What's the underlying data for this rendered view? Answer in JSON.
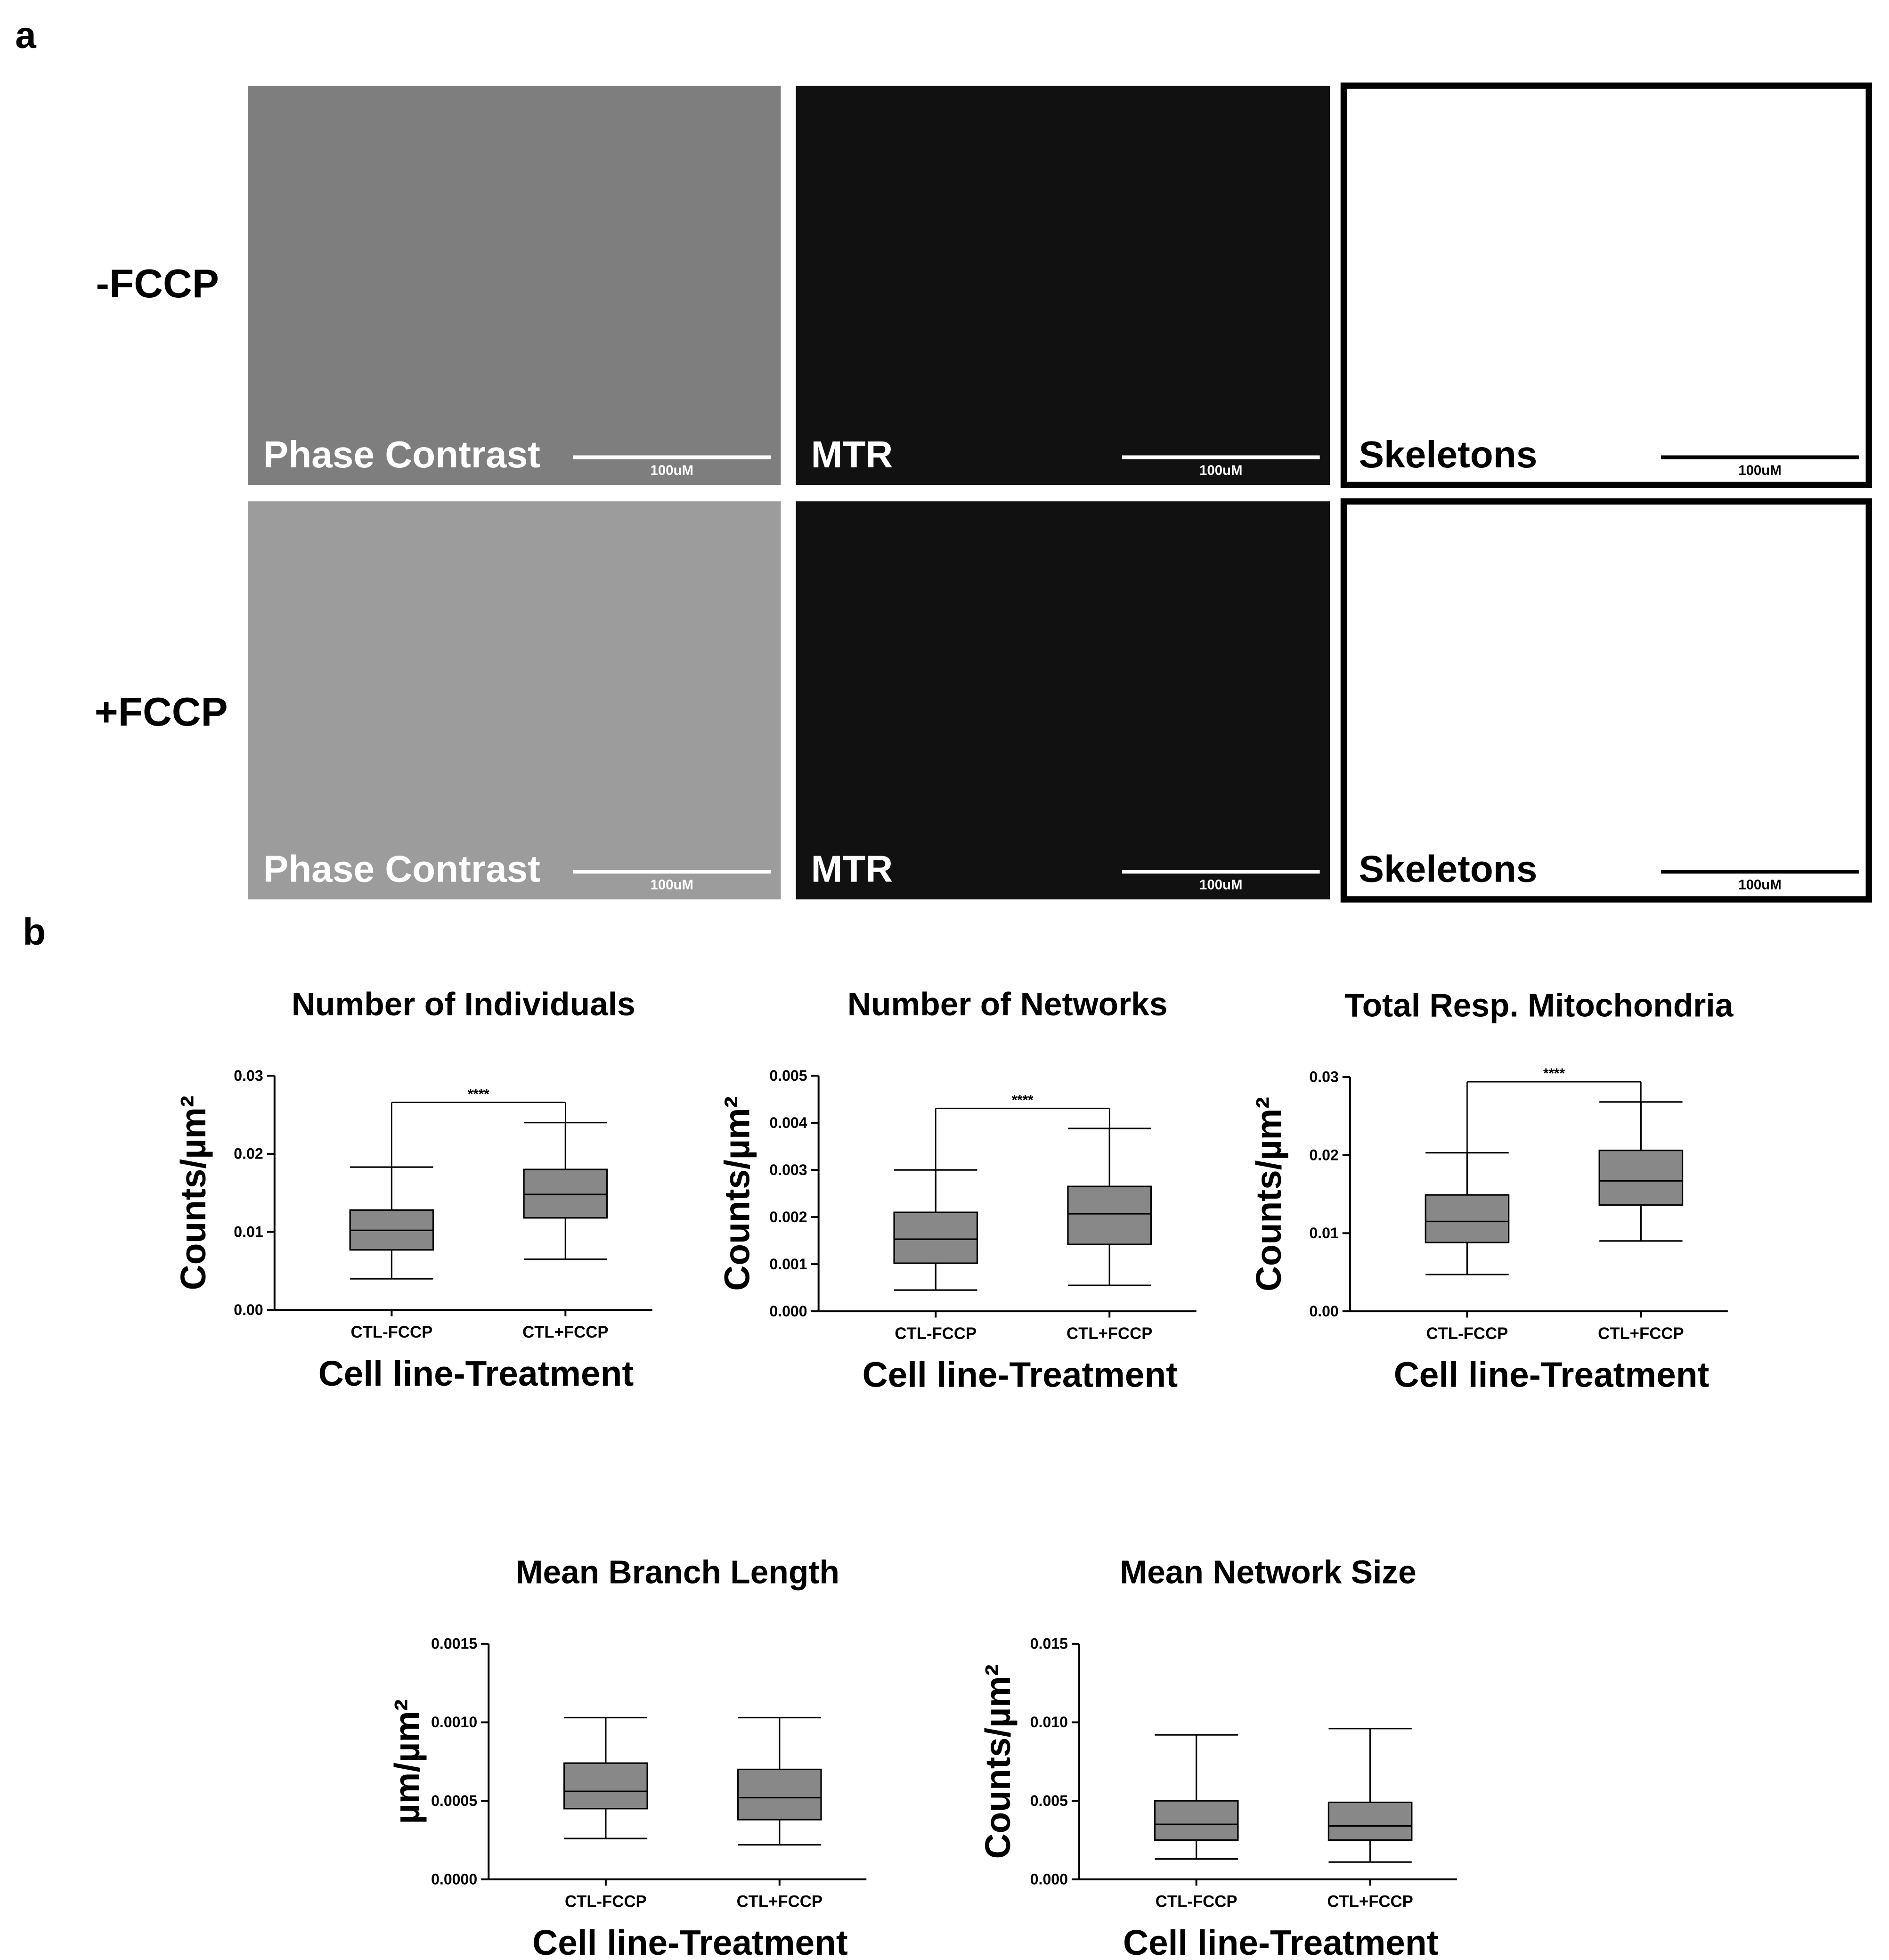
{
  "panel_a": {
    "label": "a",
    "rows": [
      "-FCCP",
      "+FCCP"
    ],
    "columns": [
      "Phase Contrast",
      "MTR",
      "Skeletons"
    ],
    "scale_bar": "100uM"
  },
  "panel_b": {
    "label": "b"
  },
  "chart_data": [
    {
      "type": "box",
      "title": "Number of Individuals",
      "y_label": "Counts/µm²",
      "x_label": "Cell line-Treatment",
      "categories": [
        "CTL-FCCP",
        "CTL+FCCP"
      ],
      "color": "#888888",
      "annotation": "****",
      "boxes": [
        {
          "min": 0.004,
          "q1": 0.0077,
          "median": 0.0102,
          "q3": 0.0128,
          "max": 0.0183
        },
        {
          "min": 0.0065,
          "q1": 0.0118,
          "median": 0.0148,
          "q3": 0.018,
          "max": 0.024
        }
      ],
      "ylim": [
        0,
        0.03
      ],
      "yticks": [
        {
          "value": 0,
          "label": "0.00"
        },
        0.01,
        0.02,
        0.03
      ]
    },
    {
      "type": "box",
      "title": "Number of Networks",
      "y_label": "Counts/µm²",
      "x_label": "Cell line-Treatment",
      "categories": [
        "CTL-FCCP",
        "CTL+FCCP"
      ],
      "color": "#888888",
      "annotation": "****",
      "boxes": [
        {
          "min": 0.00045,
          "q1": 0.00102,
          "median": 0.00153,
          "q3": 0.0021,
          "max": 0.003
        },
        {
          "min": 0.00055,
          "q1": 0.00142,
          "median": 0.00207,
          "q3": 0.00265,
          "max": 0.00388
        }
      ],
      "ylim": [
        0,
        0.005
      ],
      "yticks": [
        {
          "value": 0,
          "label": "0.000"
        },
        0.001,
        0.002,
        0.003,
        0.004,
        0.005
      ]
    },
    {
      "type": "box",
      "title": "Total Resp. Mitochondria",
      "y_label": "Counts/µm²",
      "x_label": "Cell line-Treatment",
      "categories": [
        "CTL-FCCP",
        "CTL+FCCP"
      ],
      "color": "#888888",
      "annotation": "****",
      "boxes": [
        {
          "min": 0.0047,
          "q1": 0.0088,
          "median": 0.0115,
          "q3": 0.0149,
          "max": 0.0203
        },
        {
          "min": 0.009,
          "q1": 0.0136,
          "median": 0.0167,
          "q3": 0.0206,
          "max": 0.0268
        }
      ],
      "ylim": [
        0,
        0.03
      ],
      "yticks": [
        {
          "value": 0,
          "label": "0.00"
        },
        0.01,
        0.02,
        0.03
      ]
    },
    {
      "type": "box",
      "title": "Mean Branch Length",
      "y_label": "µm/µm²",
      "x_label": "Cell line-Treatment",
      "categories": [
        "CTL-FCCP",
        "CTL+FCCP"
      ],
      "color": "#888888",
      "boxes": [
        {
          "min": 0.00026,
          "q1": 0.00045,
          "median": 0.00056,
          "q3": 0.00074,
          "max": 0.00103
        },
        {
          "min": 0.00022,
          "q1": 0.00038,
          "median": 0.00052,
          "q3": 0.0007,
          "max": 0.00103
        }
      ],
      "ylim": [
        0,
        0.0015
      ],
      "yticks": [
        {
          "value": 0,
          "label": "0.0000"
        },
        0.0005,
        {
          "value": 0.001,
          "label": "0.0010"
        },
        0.0015
      ]
    },
    {
      "type": "box",
      "title": "Mean Network Size",
      "y_label": "Counts/µm²",
      "x_label": "Cell line-Treatment",
      "categories": [
        "CTL-FCCP",
        "CTL+FCCP"
      ],
      "color": "#888888",
      "boxes": [
        {
          "min": 0.0013,
          "q1": 0.0025,
          "median": 0.0035,
          "q3": 0.005,
          "max": 0.0092
        },
        {
          "min": 0.0011,
          "q1": 0.0025,
          "median": 0.0034,
          "q3": 0.0049,
          "max": 0.0096
        }
      ],
      "ylim": [
        0,
        0.015
      ],
      "yticks": [
        {
          "value": 0,
          "label": "0.000"
        },
        0.005,
        {
          "value": 0.01,
          "label": "0.010"
        },
        0.015
      ]
    }
  ]
}
